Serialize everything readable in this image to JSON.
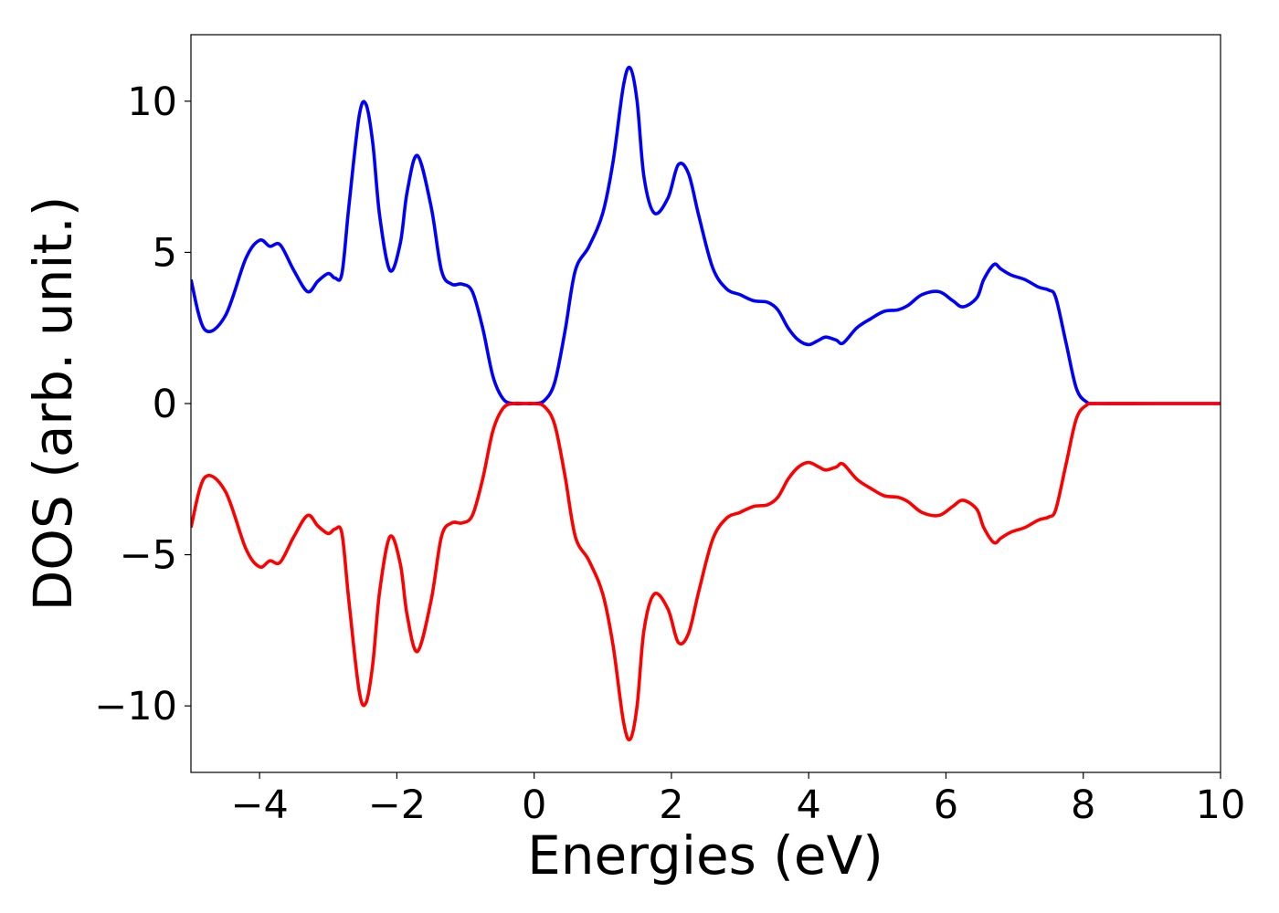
{
  "chart_data": {
    "type": "line",
    "title": "",
    "xlabel": "Energies (eV)",
    "ylabel": "DOS (arb. unit.)",
    "xlim": [
      -5,
      10
    ],
    "ylim": [
      -12.2,
      12.2
    ],
    "xticks": [
      -4,
      -2,
      0,
      2,
      4,
      6,
      8,
      10
    ],
    "yticks": [
      -10,
      -5,
      0,
      5,
      10
    ],
    "xtick_labels": [
      "−4",
      "−2",
      "0",
      "2",
      "4",
      "6",
      "8",
      "10"
    ],
    "ytick_labels": [
      "−10",
      "−5",
      "0",
      "5",
      "10"
    ],
    "grid": false,
    "legend": "none",
    "series": [
      {
        "color": "#0000ff",
        "x": [
          -5.0,
          -4.8,
          -4.5,
          -4.2,
          -4.0,
          -3.85,
          -3.7,
          -3.5,
          -3.3,
          -3.15,
          -3.0,
          -2.9,
          -2.8,
          -2.7,
          -2.55,
          -2.45,
          -2.35,
          -2.25,
          -2.1,
          -1.95,
          -1.85,
          -1.7,
          -1.5,
          -1.35,
          -1.2,
          -1.05,
          -0.9,
          -0.75,
          -0.6,
          -0.45,
          -0.3,
          -0.15,
          0.0,
          0.15,
          0.3,
          0.45,
          0.6,
          0.8,
          1.0,
          1.15,
          1.3,
          1.4,
          1.5,
          1.6,
          1.75,
          1.95,
          2.1,
          2.25,
          2.4,
          2.6,
          2.8,
          3.0,
          3.2,
          3.4,
          3.55,
          3.7,
          3.85,
          4.0,
          4.15,
          4.25,
          4.4,
          4.5,
          4.7,
          4.9,
          5.1,
          5.3,
          5.45,
          5.65,
          5.9,
          6.1,
          6.25,
          6.45,
          6.55,
          6.7,
          6.8,
          6.95,
          7.15,
          7.35,
          7.5,
          7.6,
          7.75,
          7.9,
          8.05,
          8.2,
          9.0,
          10.0
        ],
        "values": [
          4.1,
          2.45,
          2.9,
          4.8,
          5.4,
          5.2,
          5.25,
          4.4,
          3.7,
          4.05,
          4.3,
          4.15,
          4.3,
          6.5,
          9.5,
          9.9,
          8.6,
          6.2,
          4.4,
          5.3,
          7.0,
          8.2,
          6.5,
          4.4,
          3.95,
          3.95,
          3.7,
          2.5,
          0.9,
          0.15,
          0.0,
          0.0,
          0.0,
          0.1,
          0.7,
          2.4,
          4.4,
          5.2,
          6.3,
          8.0,
          10.5,
          11.1,
          10.0,
          7.5,
          6.3,
          6.8,
          7.9,
          7.6,
          6.2,
          4.5,
          3.8,
          3.6,
          3.4,
          3.35,
          3.1,
          2.5,
          2.1,
          1.95,
          2.1,
          2.2,
          2.1,
          2.0,
          2.5,
          2.8,
          3.05,
          3.1,
          3.25,
          3.6,
          3.7,
          3.4,
          3.2,
          3.5,
          4.1,
          4.6,
          4.45,
          4.25,
          4.1,
          3.85,
          3.75,
          3.5,
          2.0,
          0.5,
          0.05,
          0.0,
          0.0,
          0.0
        ]
      },
      {
        "color": "#ff0000",
        "x": [
          -5.0,
          -4.8,
          -4.5,
          -4.2,
          -4.0,
          -3.85,
          -3.7,
          -3.5,
          -3.3,
          -3.15,
          -3.0,
          -2.9,
          -2.8,
          -2.7,
          -2.55,
          -2.45,
          -2.35,
          -2.25,
          -2.1,
          -1.95,
          -1.85,
          -1.7,
          -1.5,
          -1.35,
          -1.2,
          -1.05,
          -0.9,
          -0.75,
          -0.6,
          -0.45,
          -0.3,
          -0.15,
          0.0,
          0.15,
          0.3,
          0.45,
          0.6,
          0.8,
          1.0,
          1.15,
          1.3,
          1.4,
          1.5,
          1.6,
          1.75,
          1.95,
          2.1,
          2.25,
          2.4,
          2.6,
          2.8,
          3.0,
          3.2,
          3.4,
          3.55,
          3.7,
          3.85,
          4.0,
          4.15,
          4.25,
          4.4,
          4.5,
          4.7,
          4.9,
          5.1,
          5.3,
          5.45,
          5.65,
          5.9,
          6.1,
          6.25,
          6.45,
          6.55,
          6.7,
          6.8,
          6.95,
          7.15,
          7.35,
          7.5,
          7.6,
          7.75,
          7.9,
          8.05,
          8.2,
          9.0,
          10.0
        ],
        "values": [
          -4.1,
          -2.45,
          -2.9,
          -4.8,
          -5.4,
          -5.2,
          -5.25,
          -4.4,
          -3.7,
          -4.05,
          -4.3,
          -4.15,
          -4.3,
          -6.5,
          -9.5,
          -9.9,
          -8.6,
          -6.2,
          -4.4,
          -5.3,
          -7.0,
          -8.2,
          -6.5,
          -4.4,
          -3.95,
          -3.95,
          -3.7,
          -2.5,
          -0.9,
          -0.15,
          0.0,
          0.0,
          0.0,
          -0.1,
          -0.7,
          -2.4,
          -4.4,
          -5.2,
          -6.3,
          -8.0,
          -10.5,
          -11.1,
          -10.0,
          -7.5,
          -6.3,
          -6.8,
          -7.9,
          -7.6,
          -6.2,
          -4.5,
          -3.8,
          -3.6,
          -3.4,
          -3.35,
          -3.1,
          -2.5,
          -2.1,
          -1.95,
          -2.1,
          -2.2,
          -2.1,
          -2.0,
          -2.5,
          -2.8,
          -3.05,
          -3.1,
          -3.25,
          -3.6,
          -3.7,
          -3.4,
          -3.2,
          -3.5,
          -4.1,
          -4.6,
          -4.45,
          -4.25,
          -4.1,
          -3.85,
          -3.75,
          -3.5,
          -2.0,
          -0.5,
          -0.05,
          0.0,
          0.0,
          0.0
        ]
      }
    ]
  }
}
